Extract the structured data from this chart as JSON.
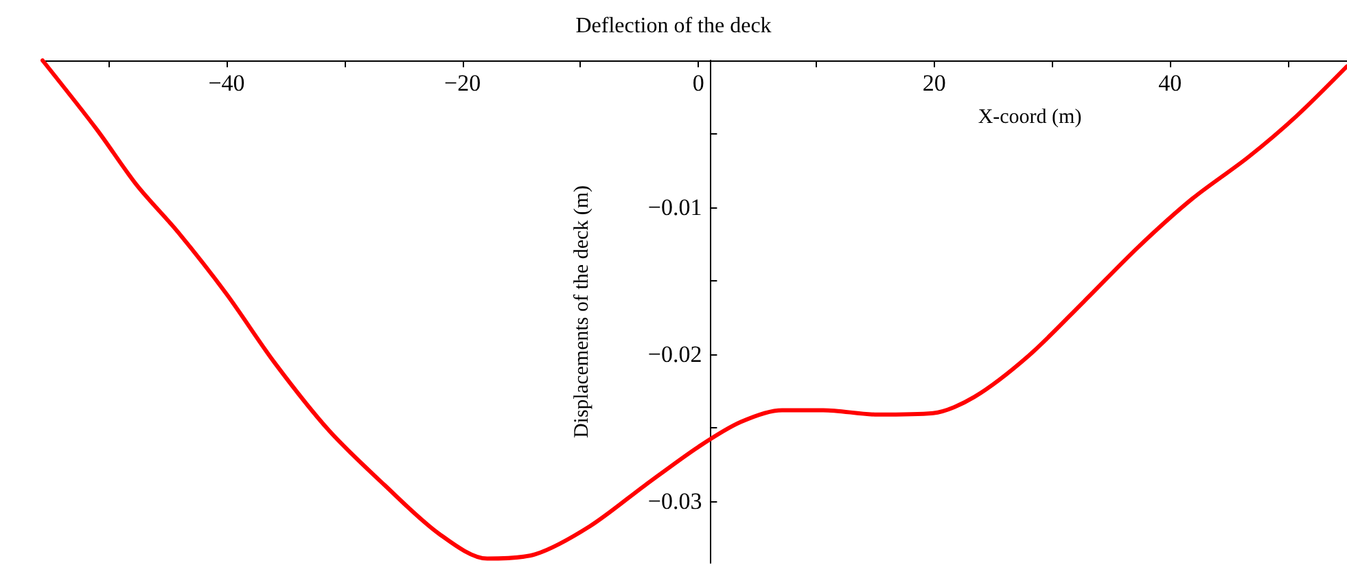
{
  "chart_data": {
    "type": "line",
    "title": "Deflection of the deck",
    "xlabel": "X-coord (m)",
    "ylabel": "Displacements of the deck (m)",
    "xlim": [
      -55.6,
      55
    ],
    "ylim": [
      -0.0342,
      0
    ],
    "xticks": [
      {
        "value": -50,
        "label": null
      },
      {
        "value": -40,
        "label": "−40"
      },
      {
        "value": -30,
        "label": null
      },
      {
        "value": -20,
        "label": "−20"
      },
      {
        "value": -10,
        "label": null
      },
      {
        "value": 0,
        "label": "0"
      },
      {
        "value": 10,
        "label": null
      },
      {
        "value": 20,
        "label": "20"
      },
      {
        "value": 30,
        "label": null
      },
      {
        "value": 40,
        "label": "40"
      },
      {
        "value": 50,
        "label": null
      }
    ],
    "yticks": [
      {
        "value": -0.005,
        "label": null
      },
      {
        "value": -0.01,
        "label": "−0.01"
      },
      {
        "value": -0.015,
        "label": null
      },
      {
        "value": -0.02,
        "label": "−0.02"
      },
      {
        "value": -0.025,
        "label": null
      },
      {
        "value": -0.03,
        "label": "−0.03"
      }
    ],
    "grid": false,
    "marker": "none",
    "line_style": "solid",
    "series": [
      {
        "color": "#ff0000",
        "x": [
          -55.6,
          -51.0,
          -47.6,
          -44.1,
          -40.0,
          -35.9,
          -31.3,
          -26.6,
          -22.0,
          -17.9,
          -13.8,
          -9.2,
          -4.5,
          0,
          3.6,
          7.1,
          10.6,
          15.2,
          19.9,
          23.4,
          28.0,
          32.7,
          37.3,
          41.9,
          46.6,
          50.7,
          55.0
        ],
        "values": [
          0,
          -0.0047,
          -0.0085,
          -0.0117,
          -0.0159,
          -0.0206,
          -0.0252,
          -0.0289,
          -0.0322,
          -0.0339,
          -0.0336,
          -0.0317,
          -0.0289,
          -0.0263,
          -0.0246,
          -0.0238,
          -0.0238,
          -0.0241,
          -0.024,
          -0.0229,
          -0.0201,
          -0.0164,
          -0.0127,
          -0.0094,
          -0.0066,
          -0.0038,
          -0.0004
        ]
      }
    ]
  }
}
